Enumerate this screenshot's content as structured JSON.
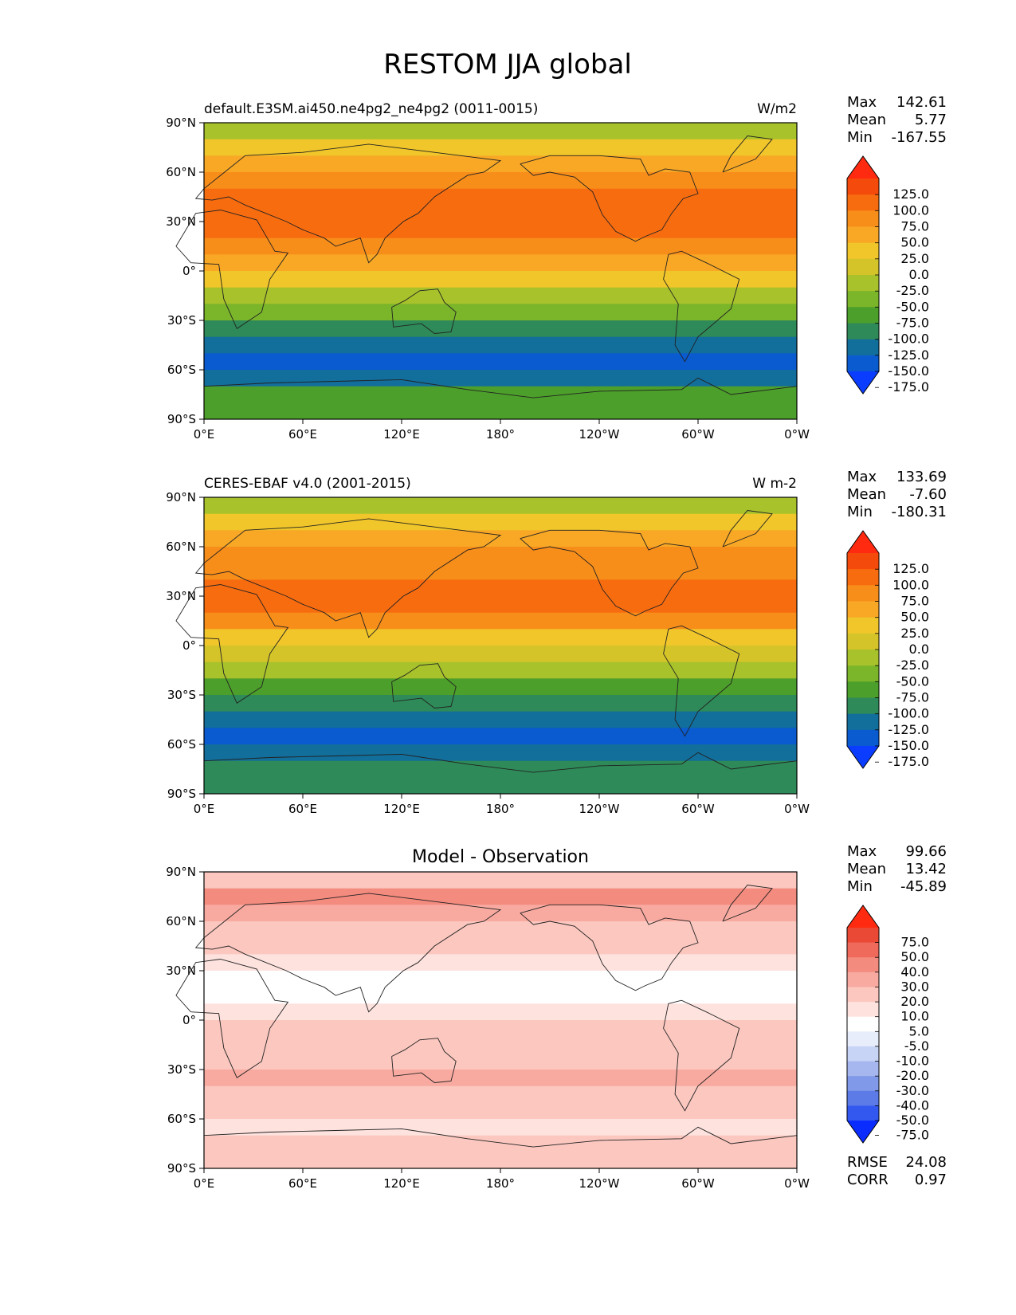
{
  "figure": {
    "title": "RESTOM JJA global"
  },
  "axes": {
    "x_ticks": [
      "0°E",
      "60°E",
      "120°E",
      "180°",
      "120°W",
      "60°W",
      "0°W"
    ],
    "y_ticks": [
      "90°N",
      "60°N",
      "30°N",
      "0°",
      "30°S",
      "60°S",
      "90°S"
    ]
  },
  "colors": {
    "abs_levels": [
      "#0a3dff",
      "#0a5bd0",
      "#126e9b",
      "#2e8a58",
      "#4c9f2a",
      "#7ab52a",
      "#a7c22b",
      "#d4c42a",
      "#f1c62a",
      "#f8a825",
      "#f88e1a",
      "#f86c10",
      "#f44a0c",
      "#ff2a10"
    ],
    "diff_levels": [
      "#0a2cff",
      "#3358f0",
      "#5c7be6",
      "#8099e8",
      "#a6b7f0",
      "#c8d4f6",
      "#e8edfb",
      "#ffffff",
      "#fde2de",
      "#fbc7bf",
      "#f8aaa0",
      "#f48b7f",
      "#ef6a5a",
      "#ea4a35",
      "#ff2a10"
    ]
  },
  "chart_data": [
    {
      "type": "heatmap",
      "panel": "test",
      "title_left": "default.E3SM.ai450.ne4pg2_ne4pg2 (0011-0015)",
      "title_right": "W/m2",
      "stats": [
        {
          "label": "Max",
          "value": "142.61"
        },
        {
          "label": "Mean",
          "value": "5.77"
        },
        {
          "label": "Min",
          "value": "-167.55"
        }
      ],
      "colorbar_labels": [
        "125.0",
        "100.0",
        "75.0",
        "50.0",
        "25.0",
        "0.0",
        "-25.0",
        "-50.0",
        "-75.0",
        "-100.0",
        "-125.0",
        "-150.0",
        "-175.0"
      ],
      "xlim": [
        0,
        360
      ],
      "ylim": [
        -90,
        90
      ],
      "lat_band_means": [
        {
          "lat": 80,
          "value": -30
        },
        {
          "lat": 70,
          "value": 0
        },
        {
          "lat": 60,
          "value": 30
        },
        {
          "lat": 50,
          "value": 55
        },
        {
          "lat": 40,
          "value": 75
        },
        {
          "lat": 30,
          "value": 90
        },
        {
          "lat": 20,
          "value": 80
        },
        {
          "lat": 10,
          "value": 60
        },
        {
          "lat": 0,
          "value": 30
        },
        {
          "lat": -10,
          "value": 0
        },
        {
          "lat": -20,
          "value": -40
        },
        {
          "lat": -30,
          "value": -75
        },
        {
          "lat": -40,
          "value": -110
        },
        {
          "lat": -50,
          "value": -140
        },
        {
          "lat": -60,
          "value": -160
        },
        {
          "lat": -70,
          "value": -130
        },
        {
          "lat": -80,
          "value": -100
        }
      ]
    },
    {
      "type": "heatmap",
      "panel": "reference",
      "title_left": "CERES-EBAF v4.0 (2001-2015)",
      "title_right": "W m-2",
      "stats": [
        {
          "label": "Max",
          "value": "133.69"
        },
        {
          "label": "Mean",
          "value": "-7.60"
        },
        {
          "label": "Min",
          "value": "-180.31"
        }
      ],
      "colorbar_labels": [
        "125.0",
        "100.0",
        "75.0",
        "50.0",
        "25.0",
        "0.0",
        "-25.0",
        "-50.0",
        "-75.0",
        "-100.0",
        "-125.0",
        "-150.0",
        "-175.0"
      ],
      "xlim": [
        0,
        360
      ],
      "ylim": [
        -90,
        90
      ],
      "lat_band_means": [
        {
          "lat": 80,
          "value": -40
        },
        {
          "lat": 70,
          "value": 0
        },
        {
          "lat": 60,
          "value": 30
        },
        {
          "lat": 50,
          "value": 50
        },
        {
          "lat": 40,
          "value": 65
        },
        {
          "lat": 30,
          "value": 80
        },
        {
          "lat": 20,
          "value": 90
        },
        {
          "lat": 10,
          "value": 60
        },
        {
          "lat": 0,
          "value": 20
        },
        {
          "lat": -10,
          "value": -10
        },
        {
          "lat": -20,
          "value": -50
        },
        {
          "lat": -30,
          "value": -85
        },
        {
          "lat": -40,
          "value": -115
        },
        {
          "lat": -50,
          "value": -150
        },
        {
          "lat": -60,
          "value": -165
        },
        {
          "lat": -70,
          "value": -140
        },
        {
          "lat": -80,
          "value": -110
        }
      ]
    },
    {
      "type": "heatmap",
      "panel": "difference",
      "title_center": "Model - Observation",
      "stats": [
        {
          "label": "Max",
          "value": "99.66"
        },
        {
          "label": "Mean",
          "value": "13.42"
        },
        {
          "label": "Min",
          "value": "-45.89"
        }
      ],
      "colorbar_labels": [
        "75.0",
        "50.0",
        "40.0",
        "30.0",
        "20.0",
        "10.0",
        "5.0",
        "-5.0",
        "-10.0",
        "-20.0",
        "-30.0",
        "-40.0",
        "-50.0",
        "-75.0"
      ],
      "metrics": [
        {
          "label": "RMSE",
          "value": "24.08"
        },
        {
          "label": "CORR",
          "value": "0.97"
        }
      ],
      "xlim": [
        0,
        360
      ],
      "ylim": [
        -90,
        90
      ],
      "lat_band_means": [
        {
          "lat": 80,
          "value": 15
        },
        {
          "lat": 70,
          "value": 30
        },
        {
          "lat": 60,
          "value": 25
        },
        {
          "lat": 50,
          "value": 15
        },
        {
          "lat": 40,
          "value": 10
        },
        {
          "lat": 30,
          "value": 8
        },
        {
          "lat": 20,
          "value": 0
        },
        {
          "lat": 10,
          "value": -5
        },
        {
          "lat": 0,
          "value": 5
        },
        {
          "lat": -10,
          "value": 10
        },
        {
          "lat": -20,
          "value": 15
        },
        {
          "lat": -30,
          "value": 15
        },
        {
          "lat": -40,
          "value": 20
        },
        {
          "lat": -50,
          "value": 15
        },
        {
          "lat": -60,
          "value": 10
        },
        {
          "lat": -70,
          "value": 5
        },
        {
          "lat": -80,
          "value": 10
        }
      ]
    }
  ]
}
